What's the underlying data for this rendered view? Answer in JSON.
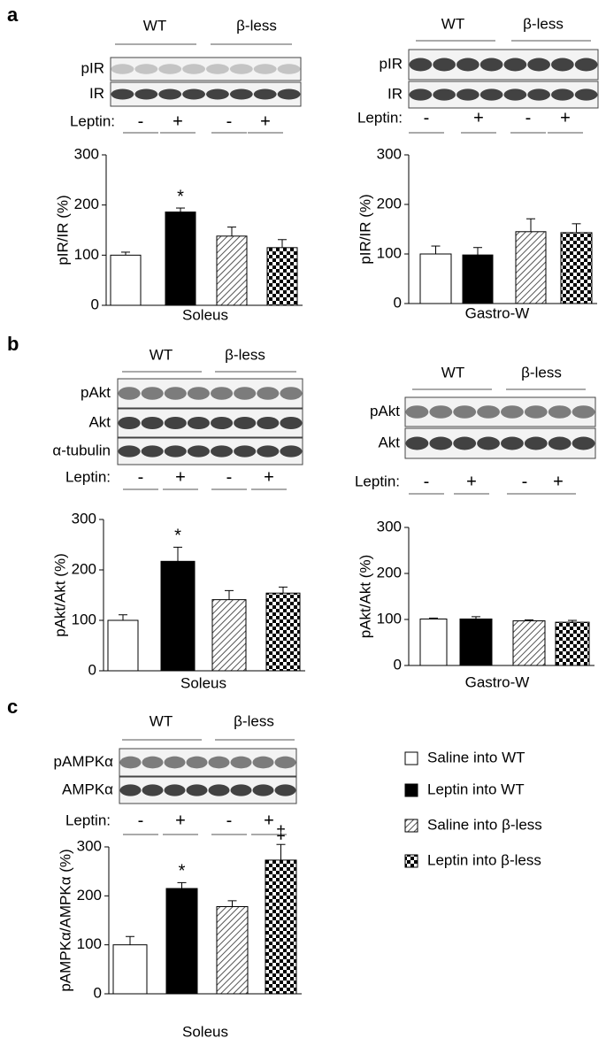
{
  "chart_data": [
    {
      "type": "bar",
      "panel": "a",
      "xlabel": "Soleus",
      "ylabel": "pIR/IR (%)",
      "values": [
        100,
        186,
        138,
        115
      ],
      "errors": [
        6,
        8,
        18,
        16
      ],
      "annotations": [
        null,
        "*",
        null,
        null
      ],
      "ylim": [
        0,
        300
      ],
      "yticks": [
        0,
        100,
        200,
        300
      ],
      "blot": {
        "groups": [
          "WT",
          "β-less"
        ],
        "rows": [
          "pIR",
          "IR"
        ],
        "treatment_label": "Leptin:",
        "treatments": [
          "-",
          "+",
          "-",
          "+"
        ]
      }
    },
    {
      "type": "bar",
      "xlabel": "Gastro-W",
      "ylabel": "pIR/IR (%)",
      "values": [
        100,
        98,
        145,
        143
      ],
      "errors": [
        16,
        15,
        26,
        18
      ],
      "annotations": [
        null,
        null,
        null,
        null
      ],
      "ylim": [
        0,
        300
      ],
      "yticks": [
        0,
        100,
        200,
        300
      ],
      "blot": {
        "groups": [
          "WT",
          "β-less"
        ],
        "rows": [
          "pIR",
          "IR"
        ],
        "treatment_label": "Leptin:",
        "treatments": [
          "-",
          "+",
          "-",
          "+"
        ]
      }
    },
    {
      "type": "bar",
      "panel": "b",
      "xlabel": "Soleus",
      "ylabel": "pAkt/Akt (%)",
      "values": [
        100,
        217,
        141,
        154
      ],
      "errors": [
        11,
        28,
        18,
        12
      ],
      "annotations": [
        null,
        "*",
        null,
        null
      ],
      "ylim": [
        0,
        300
      ],
      "yticks": [
        0,
        100,
        200,
        300
      ],
      "blot": {
        "groups": [
          "WT",
          "β-less"
        ],
        "rows": [
          "pAkt",
          "Akt",
          "α-tubulin"
        ],
        "treatment_label": "Leptin:",
        "treatments": [
          "-",
          "+",
          "-",
          "+"
        ]
      }
    },
    {
      "type": "bar",
      "xlabel": "Gastro-W",
      "ylabel": "pAkt/Akt (%)",
      "values": [
        101,
        101,
        97,
        94
      ],
      "errors": [
        2,
        5,
        2,
        4
      ],
      "annotations": [
        null,
        null,
        null,
        null
      ],
      "ylim": [
        0,
        300
      ],
      "yticks": [
        0,
        100,
        200,
        300
      ],
      "blot": {
        "groups": [
          "WT",
          "β-less"
        ],
        "rows": [
          "pAkt",
          "Akt"
        ],
        "treatment_label": "Leptin:",
        "treatments": [
          "-",
          "+",
          "-",
          "+"
        ]
      }
    },
    {
      "type": "bar",
      "panel": "c",
      "xlabel": "Soleus",
      "ylabel": "pAMPKα/AMPKα (%)",
      "values": [
        100,
        215,
        178,
        273
      ],
      "errors": [
        17,
        12,
        12,
        32
      ],
      "annotations": [
        null,
        "*",
        null,
        "‡"
      ],
      "ylim": [
        0,
        300
      ],
      "yticks": [
        0,
        100,
        200,
        300
      ],
      "blot": {
        "groups": [
          "WT",
          "β-less"
        ],
        "rows": [
          "pAMPKα",
          "AMPKα"
        ],
        "treatment_label": "Leptin:",
        "treatments": [
          "-",
          "+",
          "-",
          "+"
        ]
      }
    }
  ],
  "legend": [
    {
      "name": "Saline into WT",
      "fill": "white"
    },
    {
      "name": "Leptin into WT",
      "fill": "black"
    },
    {
      "name": "Saline into β-less",
      "fill": "hatch"
    },
    {
      "name": "Leptin into β-less",
      "fill": "checker"
    }
  ]
}
